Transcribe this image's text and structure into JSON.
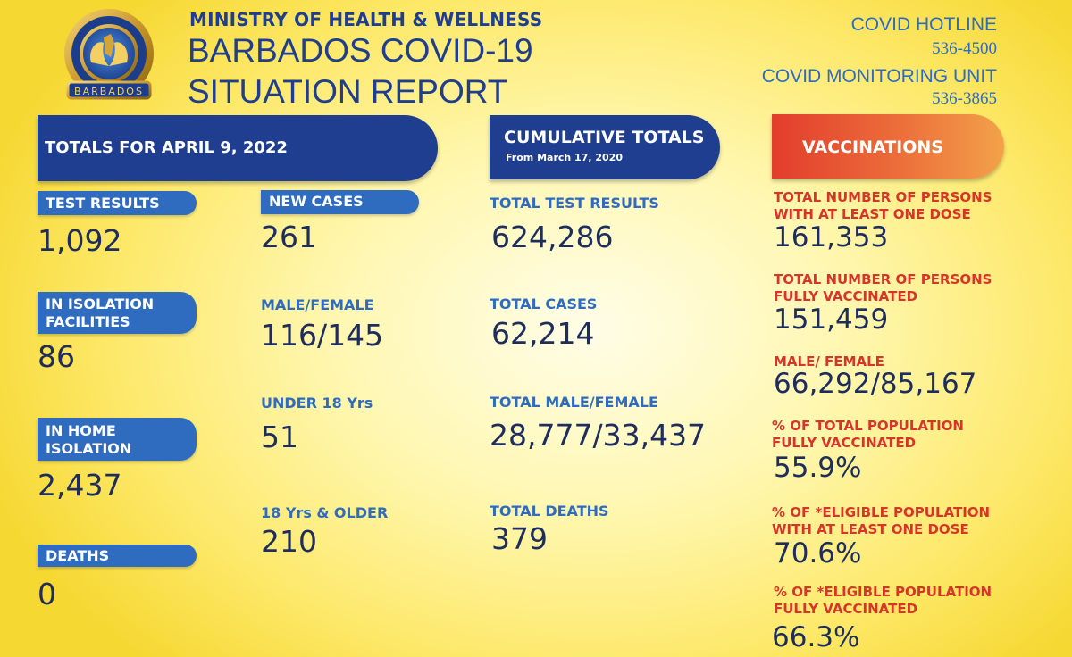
{
  "header": {
    "ministry": "MINISTRY OF HEALTH & WELLNESS",
    "title_line1": "BARBADOS COVID-19",
    "title_line2": "SITUATION REPORT",
    "logo_text": "MINISTRY OF HEALTH AND WELLNESS",
    "logo_country": "BARBADOS",
    "hotline_label": "COVID HOTLINE",
    "hotline_number": "536-4500",
    "monitoring_label": "COVID MONITORING UNIT",
    "monitoring_number": "536-3865"
  },
  "totals": {
    "banner": "TOTALS FOR APRIL 9, 2022",
    "test_results_label": "TEST RESULTS",
    "test_results_value": "1,092",
    "isolation_facilities_label_1": "IN ISOLATION",
    "isolation_facilities_label_2": "FACILITIES",
    "isolation_facilities_value": "86",
    "home_isolation_label_1": "IN HOME",
    "home_isolation_label_2": "ISOLATION",
    "home_isolation_value": "2,437",
    "deaths_label": "DEATHS",
    "deaths_value": "0",
    "new_cases_label": "NEW CASES",
    "new_cases_value": "261",
    "male_female_label": "MALE/FEMALE",
    "male_female_value": "116/145",
    "under18_label": "UNDER 18 Yrs",
    "under18_value": "51",
    "over18_label": "18 Yrs & OLDER",
    "over18_value": "210"
  },
  "cumulative": {
    "banner_title": "CUMULATIVE TOTALS",
    "banner_subtitle": "From March 17, 2020",
    "test_results_label": "TOTAL TEST RESULTS",
    "test_results_value": "624,286",
    "cases_label": "TOTAL CASES",
    "cases_value": "62,214",
    "male_female_label": "TOTAL MALE/FEMALE",
    "male_female_value": "28,777/33,437",
    "deaths_label": "TOTAL DEATHS",
    "deaths_value": "379"
  },
  "vaccinations": {
    "banner": "VACCINATIONS",
    "one_dose_label_1": "TOTAL NUMBER OF PERSONS",
    "one_dose_label_2": "WITH AT LEAST ONE DOSE",
    "one_dose_value": "161,353",
    "fully_label_1": "TOTAL NUMBER OF PERSONS",
    "fully_label_2": "FULLY VACCINATED",
    "fully_value": "151,459",
    "male_female_label": "MALE/ FEMALE",
    "male_female_value": "66,292/85,167",
    "pct_total_label_1": "% OF TOTAL POPULATION",
    "pct_total_label_2": "FULLY VACCINATED",
    "pct_total_value": "55.9%",
    "pct_eligible_one_label_1": "% OF *ELIGIBLE POPULATION",
    "pct_eligible_one_label_2": "WITH AT LEAST ONE DOSE",
    "pct_eligible_one_value": "70.6%",
    "pct_eligible_full_label_1": "% OF *ELIGIBLE POPULATION",
    "pct_eligible_full_label_2": "FULLY VACCINATED",
    "pct_eligible_full_value": "66.3%"
  },
  "colors": {
    "navy": "#1f3e8f",
    "blue": "#2f6bbf",
    "red": "#d8352a",
    "value_text": "#1e2d5c",
    "background": "#fde868"
  },
  "icons": [
    "ministry-seal-logo"
  ]
}
